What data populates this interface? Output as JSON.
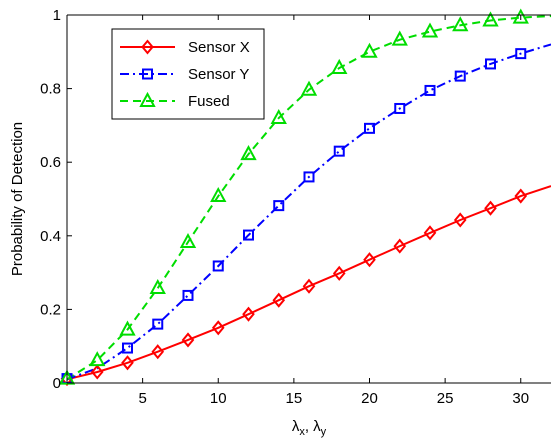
{
  "chart_data": {
    "type": "line",
    "xlabel": "λx, λy",
    "xlabel_parts": {
      "base1": "λ",
      "sub1": "x",
      "sep": ", ",
      "base2": "λ",
      "sub2": "y"
    },
    "ylabel": "Probability of Detection",
    "xlim": [
      0,
      32
    ],
    "ylim": [
      0,
      1
    ],
    "x_ticks": [
      5,
      10,
      15,
      20,
      25,
      30
    ],
    "x_tick_labels": [
      "5",
      "10",
      "15",
      "20",
      "25",
      "30"
    ],
    "y_ticks": [
      0,
      0.2,
      0.4,
      0.6,
      0.8,
      1
    ],
    "y_tick_labels": [
      "0",
      "0.2",
      "0.4",
      "0.6",
      "0.8",
      "1"
    ],
    "grid": false,
    "legend_position": "top-left",
    "series": [
      {
        "name": "Sensor X",
        "color": "#ff0000",
        "line_style": "solid",
        "marker": "diamond",
        "curve_x": [
          0,
          2,
          4,
          6,
          8,
          10,
          12,
          14,
          16,
          18,
          20,
          22,
          24,
          26,
          28,
          30,
          32
        ],
        "curve_y": [
          0.01,
          0.03,
          0.055,
          0.085,
          0.117,
          0.15,
          0.187,
          0.225,
          0.263,
          0.298,
          0.335,
          0.372,
          0.408,
          0.443,
          0.475,
          0.508,
          0.535
        ],
        "marker_x": [
          0,
          2,
          4,
          6,
          8,
          10,
          12,
          14,
          16,
          18,
          20,
          22,
          24,
          26,
          28,
          30
        ],
        "marker_y": [
          0.012,
          0.03,
          0.055,
          0.085,
          0.117,
          0.15,
          0.187,
          0.225,
          0.263,
          0.298,
          0.335,
          0.372,
          0.408,
          0.443,
          0.475,
          0.508
        ]
      },
      {
        "name": "Sensor Y",
        "color": "#0000ff",
        "line_style": "dashdot",
        "marker": "square",
        "curve_x": [
          0,
          2,
          4,
          6,
          8,
          10,
          12,
          14,
          16,
          18,
          20,
          22,
          24,
          26,
          28,
          30,
          32
        ],
        "curve_y": [
          0.01,
          0.04,
          0.095,
          0.16,
          0.238,
          0.318,
          0.402,
          0.482,
          0.56,
          0.63,
          0.692,
          0.746,
          0.795,
          0.834,
          0.867,
          0.895,
          0.92
        ],
        "marker_x": [
          0,
          4,
          6,
          8,
          10,
          12,
          14,
          16,
          18,
          20,
          22,
          24,
          26,
          28,
          30
        ],
        "marker_y": [
          0.012,
          0.095,
          0.16,
          0.238,
          0.318,
          0.402,
          0.482,
          0.56,
          0.63,
          0.692,
          0.746,
          0.795,
          0.834,
          0.867,
          0.895
        ]
      },
      {
        "name": "Fused",
        "color": "#00dd00",
        "line_style": "dashed",
        "marker": "triangle",
        "curve_x": [
          0,
          2,
          4,
          6,
          8,
          10,
          12,
          14,
          16,
          18,
          20,
          22,
          24,
          26,
          28,
          30,
          32
        ],
        "curve_y": [
          0.01,
          0.062,
          0.145,
          0.258,
          0.383,
          0.508,
          0.622,
          0.72,
          0.797,
          0.856,
          0.9,
          0.933,
          0.955,
          0.972,
          0.985,
          0.993,
          0.997
        ],
        "marker_x": [
          0,
          2,
          4,
          6,
          8,
          10,
          12,
          14,
          16,
          18,
          20,
          22,
          24,
          26,
          28,
          30
        ],
        "marker_y": [
          0.012,
          0.062,
          0.145,
          0.258,
          0.383,
          0.508,
          0.622,
          0.72,
          0.797,
          0.856,
          0.9,
          0.933,
          0.955,
          0.972,
          0.985,
          0.993
        ]
      }
    ]
  }
}
